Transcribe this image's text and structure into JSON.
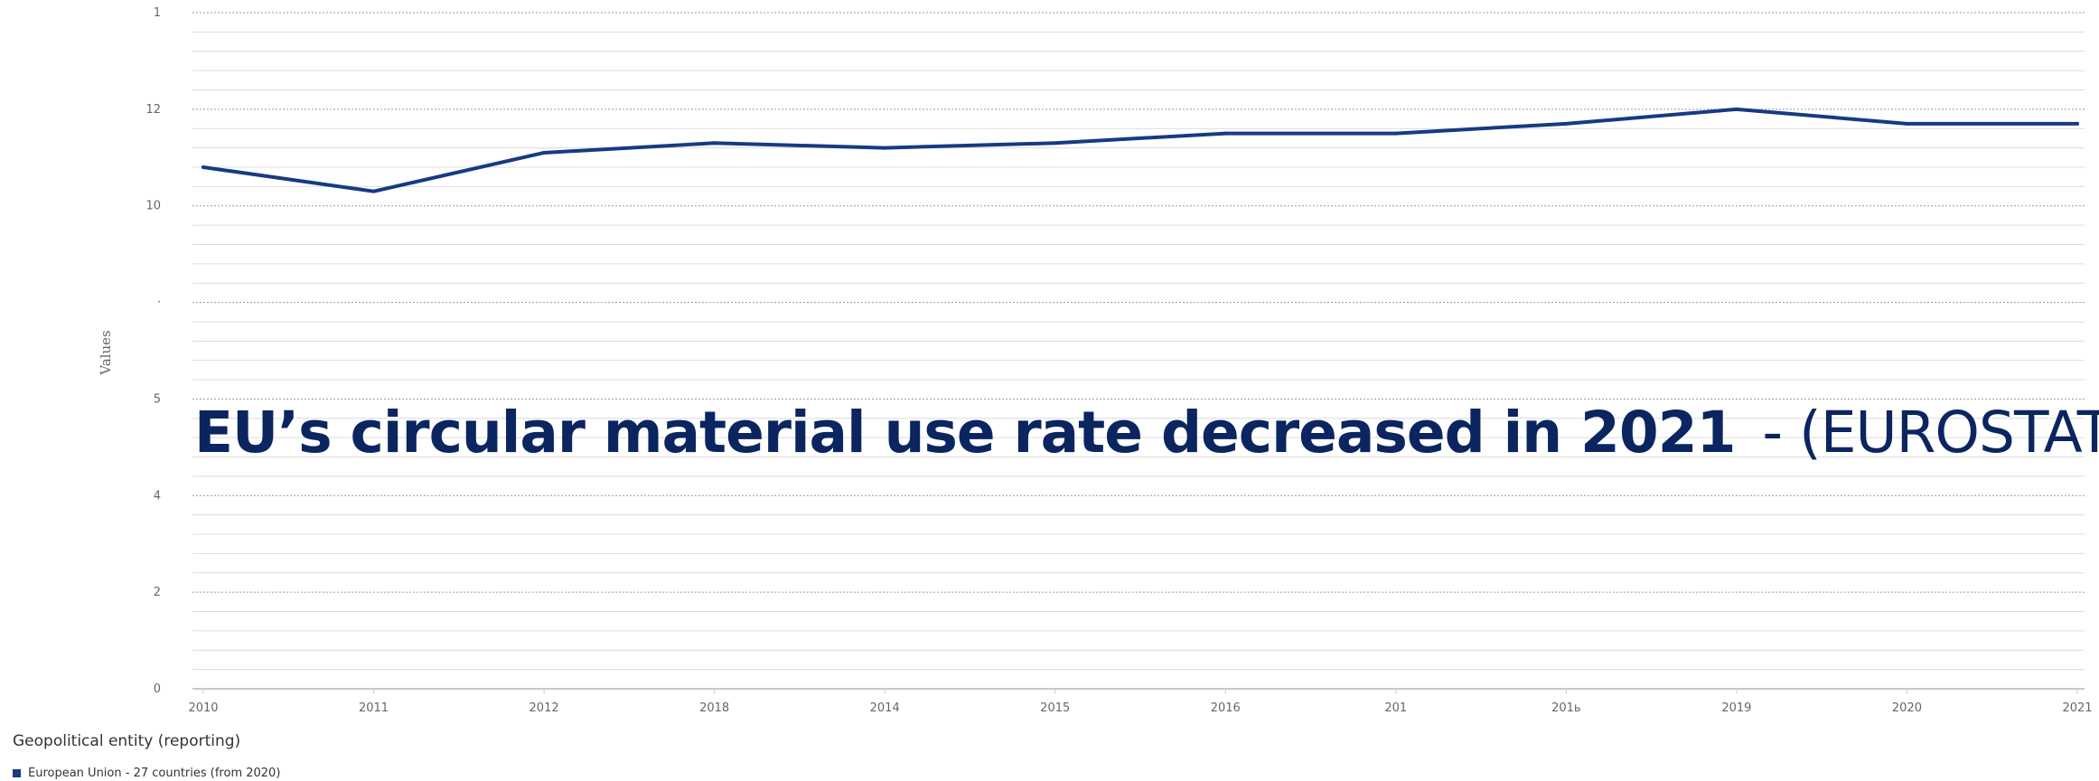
{
  "headline": {
    "main": "EU’s circular material use rate decreased in 2021",
    "source": "- (EUROSTAT)"
  },
  "legend": {
    "title": "Geopolitical entity (reporting)",
    "item": "European Union - 27 countries (from 2020)"
  },
  "colors": {
    "series": "#173a82",
    "headline": "#0b2560"
  },
  "chart_data": {
    "type": "line",
    "title": "",
    "xlabel": "",
    "ylabel": "Values",
    "x": [
      "2010",
      "2011",
      "2012",
      "2018",
      "2014",
      "2015",
      "2016",
      "201",
      "201ь",
      "2019",
      "2020",
      "2021"
    ],
    "y_tick_labels": [
      "0",
      "2",
      "4",
      "5",
      "·",
      "10",
      "12",
      "1"
    ],
    "ylim": [
      0,
      14
    ],
    "grid": true,
    "legend_position": "bottom-left",
    "series": [
      {
        "name": "European Union - 27 countries (from 2020)",
        "values": [
          10.8,
          10.3,
          11.1,
          11.3,
          11.2,
          11.3,
          11.5,
          11.5,
          11.7,
          12.0,
          11.7,
          11.7
        ]
      }
    ]
  }
}
